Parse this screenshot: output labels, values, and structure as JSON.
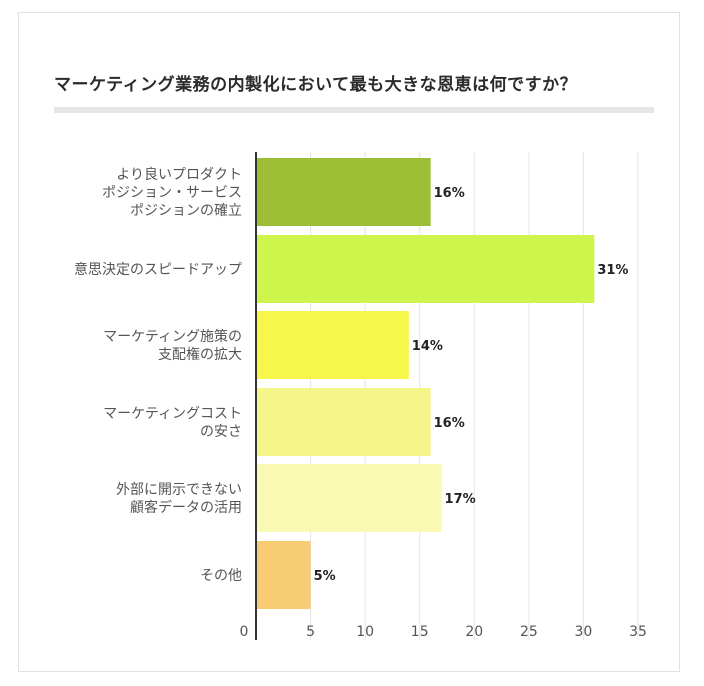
{
  "title": "マーケティング業務の内製化において最も大きな恩恵は何ですか？",
  "chart_data": {
    "type": "bar",
    "orientation": "horizontal",
    "title": "マーケティング業務の内製化において最も大きな恩恵は何ですか？",
    "categories": [
      [
        "より良いプロダクト",
        "ポジション・サービス",
        "ポジションの確立"
      ],
      [
        "意思決定のスピードアップ"
      ],
      [
        "マーケティング施策の",
        "支配権の拡大"
      ],
      [
        "マーケティングコスト",
        "の安さ"
      ],
      [
        "外部に開示できない",
        "顧客データの活用"
      ],
      [
        "その他"
      ]
    ],
    "values": [
      16,
      31,
      14,
      16,
      17,
      5
    ],
    "value_labels": [
      "16%",
      "31%",
      "14%",
      "16%",
      "17%",
      "5%"
    ],
    "colors": [
      "#9dbd34",
      "#cdf54c",
      "#f7f64a",
      "#f6f58a",
      "#faf9b3",
      "#f7cc73"
    ],
    "xlim": [
      0,
      35
    ],
    "xticks": [
      0,
      5,
      10,
      15,
      20,
      25,
      30,
      35
    ],
    "grid": true,
    "legend": "none"
  }
}
